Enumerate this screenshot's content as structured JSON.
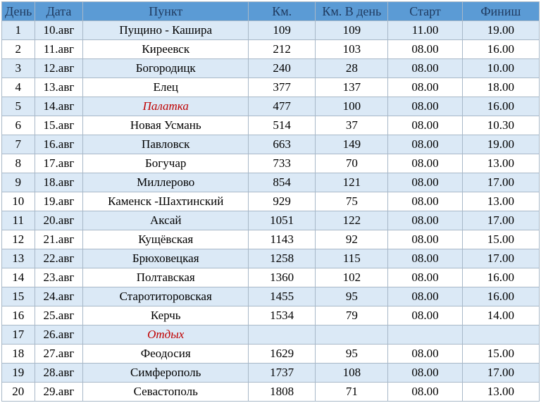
{
  "columns": [
    "День",
    "Дата",
    "Пункт",
    "Км.",
    "Км. В день",
    "Старт",
    "Финиш"
  ],
  "col_classes": [
    "c0",
    "c1",
    "c2",
    "c3",
    "c4",
    "c5",
    "c6"
  ],
  "rows": [
    {
      "d": "1",
      "date": "10.авг",
      "place": "Пущино - Кашира",
      "km": "109",
      "kmday": "109",
      "start": "11.00",
      "fin": "19.00"
    },
    {
      "d": "2",
      "date": "11.авг",
      "place": "Киреевск",
      "km": "212",
      "kmday": "103",
      "start": "08.00",
      "fin": "16.00"
    },
    {
      "d": "3",
      "date": "12.авг",
      "place": "Богородицк",
      "km": "240",
      "kmday": "28",
      "start": "08.00",
      "fin": "10.00"
    },
    {
      "d": "4",
      "date": "13.авг",
      "place": "Елец",
      "km": "377",
      "kmday": "137",
      "start": "08.00",
      "fin": "18.00"
    },
    {
      "d": "5",
      "date": "14.авг",
      "place": "Палатка",
      "km": "477",
      "kmday": "100",
      "start": "08.00",
      "fin": "16.00",
      "placeClass": "red-it"
    },
    {
      "d": "6",
      "date": "15.авг",
      "place": "Новая Усмань",
      "km": "514",
      "kmday": "37",
      "start": "08.00",
      "fin": "10.30"
    },
    {
      "d": "7",
      "date": "16.авг",
      "place": "Павловск",
      "km": "663",
      "kmday": "149",
      "start": "08.00",
      "fin": "19.00"
    },
    {
      "d": "8",
      "date": "17.авг",
      "place": "Богучар",
      "km": "733",
      "kmday": "70",
      "start": "08.00",
      "fin": "13.00"
    },
    {
      "d": "9",
      "date": "18.авг",
      "place": "Миллерово",
      "km": "854",
      "kmday": "121",
      "start": "08.00",
      "fin": "17.00"
    },
    {
      "d": "10",
      "date": "19.авг",
      "place": "Каменск -Шахтинский",
      "km": "929",
      "kmday": "75",
      "start": "08.00",
      "fin": "13.00"
    },
    {
      "d": "11",
      "date": "20.авг",
      "place": "Аксай",
      "km": "1051",
      "kmday": "122",
      "start": "08.00",
      "fin": "17.00"
    },
    {
      "d": "12",
      "date": "21.авг",
      "place": "Кущёвская",
      "km": "1143",
      "kmday": "92",
      "start": "08.00",
      "fin": "15.00"
    },
    {
      "d": "13",
      "date": "22.авг",
      "place": "Брюховецкая",
      "km": "1258",
      "kmday": "115",
      "start": "08.00",
      "fin": "17.00"
    },
    {
      "d": "14",
      "date": "23.авг",
      "place": "Полтавская",
      "km": "1360",
      "kmday": "102",
      "start": "08.00",
      "fin": "16.00"
    },
    {
      "d": "15",
      "date": "24.авг",
      "place": "Старотиторовская",
      "km": "1455",
      "kmday": "95",
      "start": "08.00",
      "fin": "16.00"
    },
    {
      "d": "16",
      "date": "25.авг",
      "place": "Керчь",
      "km": "1534",
      "kmday": "79",
      "start": "08.00",
      "fin": "14.00"
    },
    {
      "d": "17",
      "date": "26.авг",
      "place": "Отдых",
      "km": "",
      "kmday": "",
      "start": "",
      "fin": "",
      "placeClass": "red-it"
    },
    {
      "d": "18",
      "date": "27.авг",
      "place": "Феодосия",
      "km": "1629",
      "kmday": "95",
      "start": "08.00",
      "fin": "15.00"
    },
    {
      "d": "19",
      "date": "28.авг",
      "place": "Симферополь",
      "km": "1737",
      "kmday": "108",
      "start": "08.00",
      "fin": "17.00"
    },
    {
      "d": "20",
      "date": "29.авг",
      "place": "Севастополь",
      "km": "1808",
      "kmday": "71",
      "start": "08.00",
      "fin": "13.00"
    }
  ]
}
